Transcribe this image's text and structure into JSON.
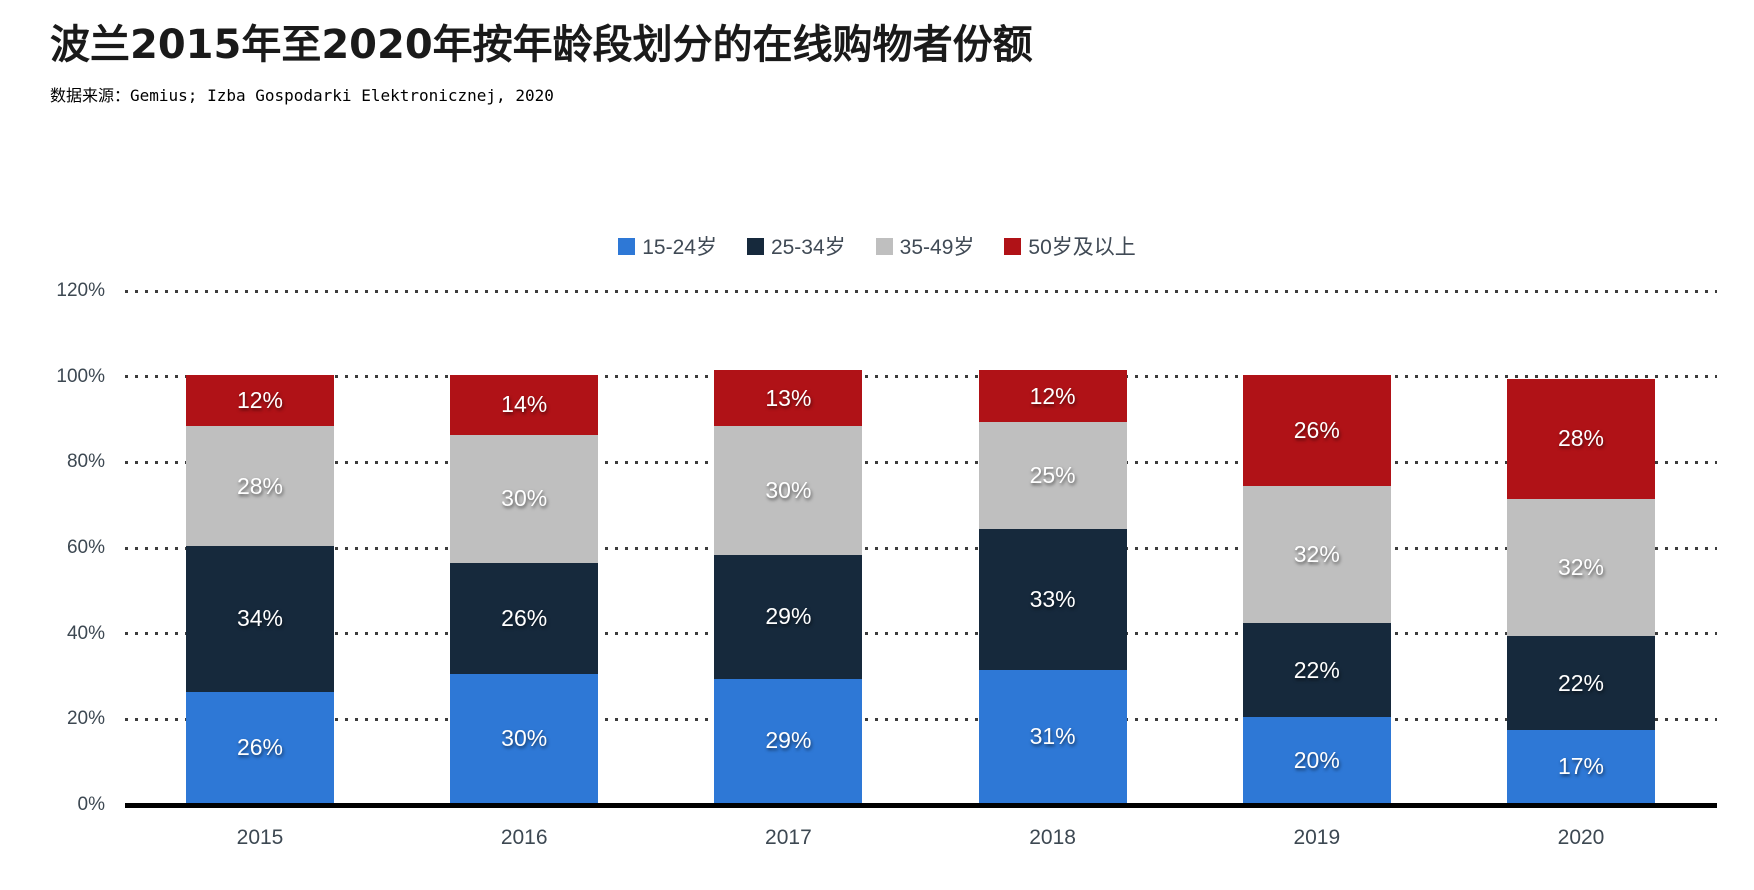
{
  "title": "波兰2015年至2020年按年龄段划分的在线购物者份额",
  "source": "数据来源：Gemius; Izba Gospodarki Elektronicznej, 2020",
  "chart_data": {
    "type": "bar",
    "stacked": true,
    "title": "波兰2015年至2020年按年龄段划分的在线购物者份额",
    "source_note": "数据来源：Gemius; Izba Gospodarki Elektronicznej, 2020",
    "categories": [
      "2015",
      "2016",
      "2017",
      "2018",
      "2019",
      "2020"
    ],
    "series": [
      {
        "name": "15-24岁",
        "color": "#2E78D6",
        "values": [
          26,
          30,
          29,
          31,
          20,
          17
        ]
      },
      {
        "name": "25-34岁",
        "color": "#16293C",
        "values": [
          34,
          26,
          29,
          33,
          22,
          22
        ]
      },
      {
        "name": "35-49岁",
        "color": "#BFBFBF",
        "values": [
          28,
          30,
          30,
          25,
          32,
          32
        ]
      },
      {
        "name": "50岁及以上",
        "color": "#B01217",
        "values": [
          12,
          14,
          13,
          12,
          26,
          28
        ]
      }
    ],
    "y_ticks": [
      {
        "label": "120%",
        "value": 120
      },
      {
        "label": "100%",
        "value": 100
      },
      {
        "label": "80%",
        "value": 80
      },
      {
        "label": "60%",
        "value": 60
      },
      {
        "label": "40%",
        "value": 40
      },
      {
        "label": "20%",
        "value": 20
      },
      {
        "label": "0%",
        "value": 0
      }
    ],
    "ylim": [
      0,
      120
    ],
    "grid": "horizontal-dotted",
    "legend_position": "top-center",
    "value_label_format": "{v}%"
  },
  "style": {
    "axis_color": "#000000",
    "grid_dot_color": "#3c3c3c",
    "label_color": "#3d4852",
    "segment_label_color": "#ffffff"
  }
}
